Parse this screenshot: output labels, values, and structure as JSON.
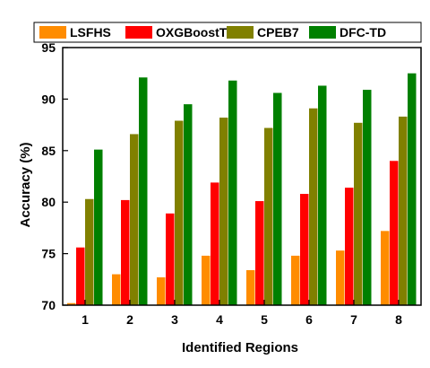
{
  "chart_data": {
    "type": "bar",
    "title": "",
    "xlabel": "Identified Regions",
    "ylabel": "Accuracy (%)",
    "categories": [
      "1",
      "2",
      "3",
      "4",
      "5",
      "6",
      "7",
      "8"
    ],
    "ylim": [
      70,
      95
    ],
    "yticks": [
      "70",
      "75",
      "80",
      "85",
      "90",
      "95"
    ],
    "grid": false,
    "legend_position": "top",
    "series": [
      {
        "name": "LSFHS",
        "color": "#FF8C00",
        "values": [
          70.2,
          73.0,
          72.7,
          74.8,
          73.4,
          74.8,
          75.3,
          77.2
        ]
      },
      {
        "name": "OXGBoostT",
        "color": "#FF0000",
        "values": [
          75.6,
          80.2,
          78.9,
          81.9,
          80.1,
          80.8,
          81.4,
          84.0
        ]
      },
      {
        "name": "CPEB7",
        "color": "#808000",
        "values": [
          80.3,
          86.6,
          87.9,
          88.2,
          87.2,
          89.1,
          87.7,
          88.3
        ]
      },
      {
        "name": "DFC-TD",
        "color": "#008000",
        "values": [
          85.1,
          92.1,
          89.5,
          91.8,
          90.6,
          91.3,
          90.9,
          92.5
        ]
      }
    ]
  }
}
